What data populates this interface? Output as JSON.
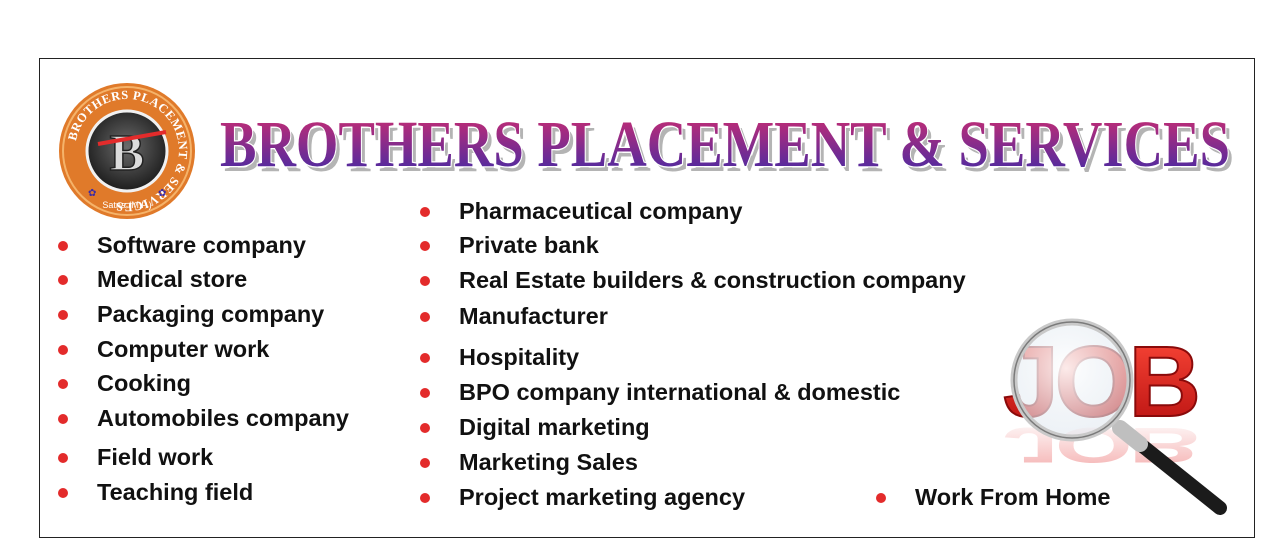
{
  "brand": {
    "headline": "BROTHERS PLACEMENT & SERVICES",
    "logo_ring_text": "BROTHERS PLACEMENT & SERVICES",
    "logo_location": "Satna (M.P.)",
    "logo_monogram": "B",
    "colors": {
      "headline_gradient_top": "#d42d6e",
      "headline_gradient_bottom": "#3a2aa8",
      "logo_orange": "#e07a2a",
      "bullet_red": "#e32b2b",
      "job_red": "#e01818"
    }
  },
  "lists": {
    "left": [
      "Software company",
      "Medical store",
      "Packaging company",
      "Computer work",
      "Cooking",
      "Automobiles company",
      "Field work",
      "Teaching field"
    ],
    "middle": [
      "Pharmaceutical company",
      "Private bank",
      "Real Estate builders & construction company",
      "Manufacturer",
      "Hospitality",
      "BPO company international & domestic",
      "Digital marketing",
      "Marketing Sales",
      "Project marketing agency"
    ],
    "extra": [
      "Work From Home"
    ]
  },
  "graphic": {
    "word": "JOB",
    "icon": "magnifying-glass-icon"
  }
}
